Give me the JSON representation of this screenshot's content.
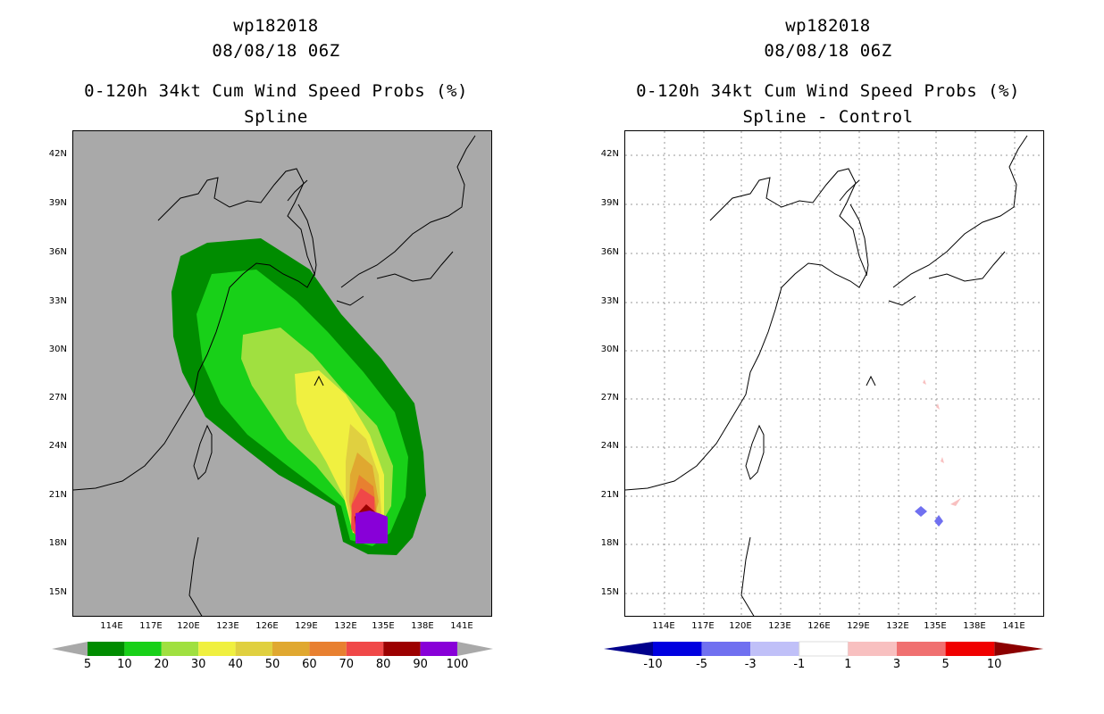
{
  "left": {
    "storm_id": "wp182018",
    "datetime": "08/08/18 06Z",
    "product": "0-120h 34kt Cum Wind Speed Probs (%)",
    "subtitle": "Spline",
    "colorbar": {
      "colors": [
        "#008c00",
        "#18d018",
        "#a0e040",
        "#f0f040",
        "#e0d040",
        "#e0a830",
        "#e88030",
        "#f04848",
        "#9c0000",
        "#8800d8"
      ],
      "labels": [
        "5",
        "10",
        "20",
        "30",
        "40",
        "50",
        "60",
        "70",
        "80",
        "90",
        "100"
      ]
    }
  },
  "right": {
    "storm_id": "wp182018",
    "datetime": "08/08/18 06Z",
    "product": "0-120h 34kt Cum Wind Speed Probs (%)",
    "subtitle": "Spline - Control",
    "colorbar": {
      "colors": [
        "#0000e0",
        "#7070f0",
        "#c0c0f8",
        "#ffffff",
        "#f8c0c0",
        "#f07070",
        "#f00000"
      ],
      "end_low": "#00008c",
      "end_high": "#8c0000",
      "labels": [
        "-10",
        "-5",
        "-3",
        "-1",
        "1",
        "3",
        "5",
        "10"
      ]
    }
  },
  "axes": {
    "lat_labels": [
      "42N",
      "39N",
      "36N",
      "33N",
      "30N",
      "27N",
      "24N",
      "21N",
      "18N",
      "15N"
    ],
    "lon_labels": [
      "114E",
      "117E",
      "120E",
      "123E",
      "126E",
      "129E",
      "132E",
      "135E",
      "138E",
      "141E"
    ]
  }
}
